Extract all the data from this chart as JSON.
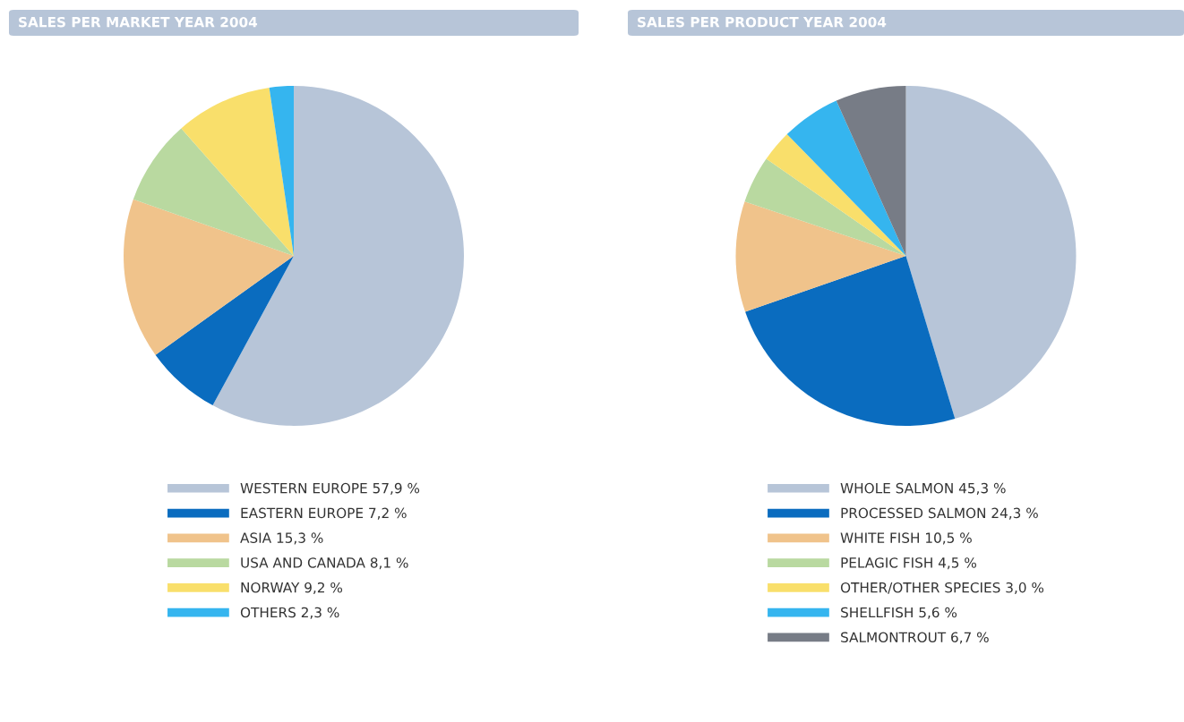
{
  "chart_data": [
    {
      "type": "pie",
      "title": "SALES PER MARKET YEAR 2004",
      "legend": "bottom",
      "categories": [
        "WESTERN EUROPE",
        "EASTERN EUROPE",
        "ASIA",
        "USA AND CANADA",
        "NORWAY",
        "OTHERS"
      ],
      "values": [
        57.9,
        7.2,
        15.3,
        8.1,
        9.2,
        2.3
      ],
      "value_labels": [
        "57,9 %",
        "7,2 %",
        "15,3 %",
        "8,1 %",
        "9,2 %",
        "2,3 %"
      ],
      "colors": [
        "#b7c5d8",
        "#0a6cbf",
        "#f0c38b",
        "#b9d9a0",
        "#f9df6b",
        "#35b5ef"
      ]
    },
    {
      "type": "pie",
      "title": "SALES PER PRODUCT YEAR 2004",
      "legend": "bottom",
      "categories": [
        "WHOLE SALMON",
        "PROCESSED SALMON",
        "WHITE FISH",
        "PELAGIC FISH",
        "OTHER/OTHER SPECIES",
        "SHELLFISH",
        "SALMONTROUT"
      ],
      "values": [
        45.3,
        24.3,
        10.5,
        4.5,
        3.0,
        5.6,
        6.7
      ],
      "value_labels": [
        "45,3 %",
        "24,3 %",
        "10,5 %",
        "4,5 %",
        "3,0 %",
        "5,6 %",
        "6,7 %"
      ],
      "colors": [
        "#b7c5d8",
        "#0a6cbf",
        "#f0c38b",
        "#b9d9a0",
        "#f9df6b",
        "#35b5ef",
        "#777c86"
      ]
    }
  ]
}
